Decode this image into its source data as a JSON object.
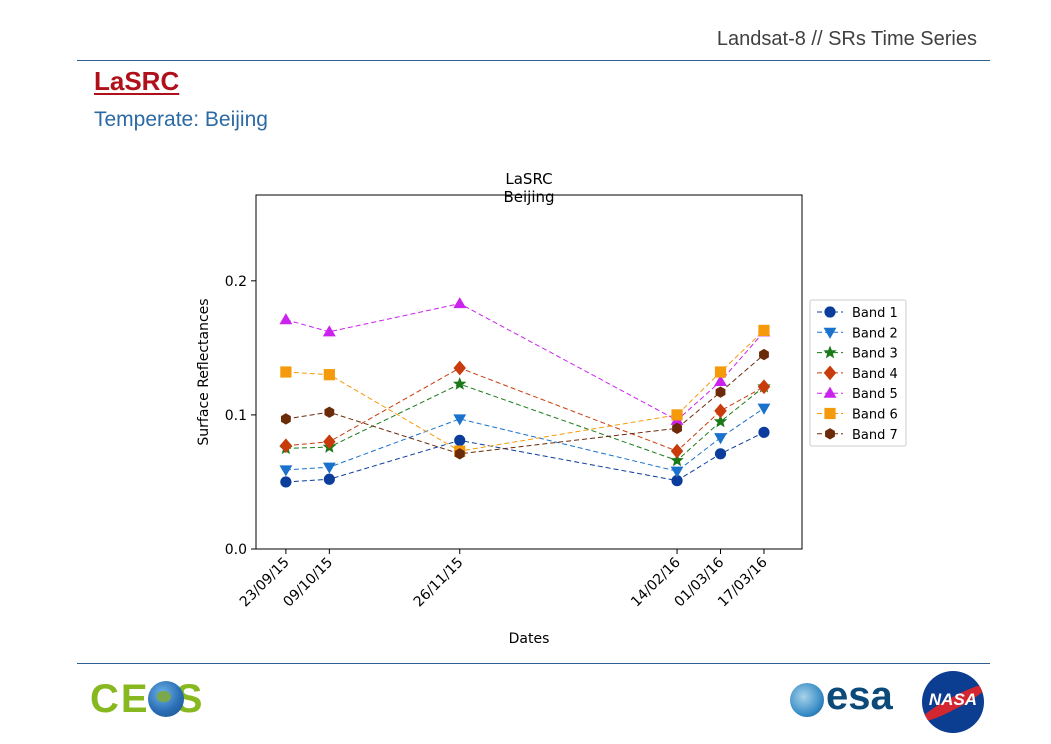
{
  "header": {
    "text": "Landsat-8 // SRs Time Series"
  },
  "slide": {
    "title": "LaSRC",
    "subtitle": "Temperate: Beijing"
  },
  "logos": {
    "left": "CEOS",
    "center": "esa",
    "right": "NASA"
  },
  "chart_data": {
    "type": "line",
    "title": "LaSRC",
    "subtitle": "Beijing",
    "xlabel": "Dates",
    "ylabel": "Surface Reflectances",
    "x": [
      "2015-09-23",
      "2015-10-09",
      "2015-11-26",
      "2016-02-14",
      "2016-03-01",
      "2016-03-17"
    ],
    "x_tick_labels": [
      "23/09/15",
      "09/10/15",
      "26/11/15",
      "14/02/16",
      "01/03/16",
      "17/03/16"
    ],
    "xlim": [
      "2015-09-12",
      "2016-03-31"
    ],
    "ylim": [
      0.0,
      0.2
    ],
    "y_visible_max": 0.264,
    "yticks": [
      0.0,
      0.1,
      0.2
    ],
    "y_tick_labels": [
      "0.0",
      "0.1",
      "0.2"
    ],
    "grid": false,
    "legend_position": "right, outside plot",
    "series": [
      {
        "name": "Band 1",
        "color": "#0c3c9c",
        "marker": "circle",
        "values": [
          0.05,
          0.052,
          0.081,
          0.051,
          0.071,
          0.087
        ]
      },
      {
        "name": "Band 2",
        "color": "#1a72cc",
        "marker": "triangle-down",
        "values": [
          0.059,
          0.061,
          0.097,
          0.058,
          0.083,
          0.105
        ]
      },
      {
        "name": "Band 3",
        "color": "#1a7a1a",
        "marker": "star",
        "values": [
          0.075,
          0.076,
          0.123,
          0.066,
          0.095,
          0.121
        ]
      },
      {
        "name": "Band 4",
        "color": "#c83c0c",
        "marker": "diamond",
        "values": [
          0.077,
          0.08,
          0.135,
          0.073,
          0.103,
          0.121
        ]
      },
      {
        "name": "Band 5",
        "color": "#cc22ee",
        "marker": "triangle-up",
        "values": [
          0.171,
          0.162,
          0.183,
          0.096,
          0.125,
          0.162
        ]
      },
      {
        "name": "Band 6",
        "color": "#f59a0a",
        "marker": "square",
        "values": [
          0.132,
          0.13,
          0.073,
          0.1,
          0.132,
          0.163
        ]
      },
      {
        "name": "Band 7",
        "color": "#6b2a08",
        "marker": "hexagon",
        "values": [
          0.097,
          0.102,
          0.071,
          0.09,
          0.117,
          0.145
        ]
      }
    ]
  }
}
